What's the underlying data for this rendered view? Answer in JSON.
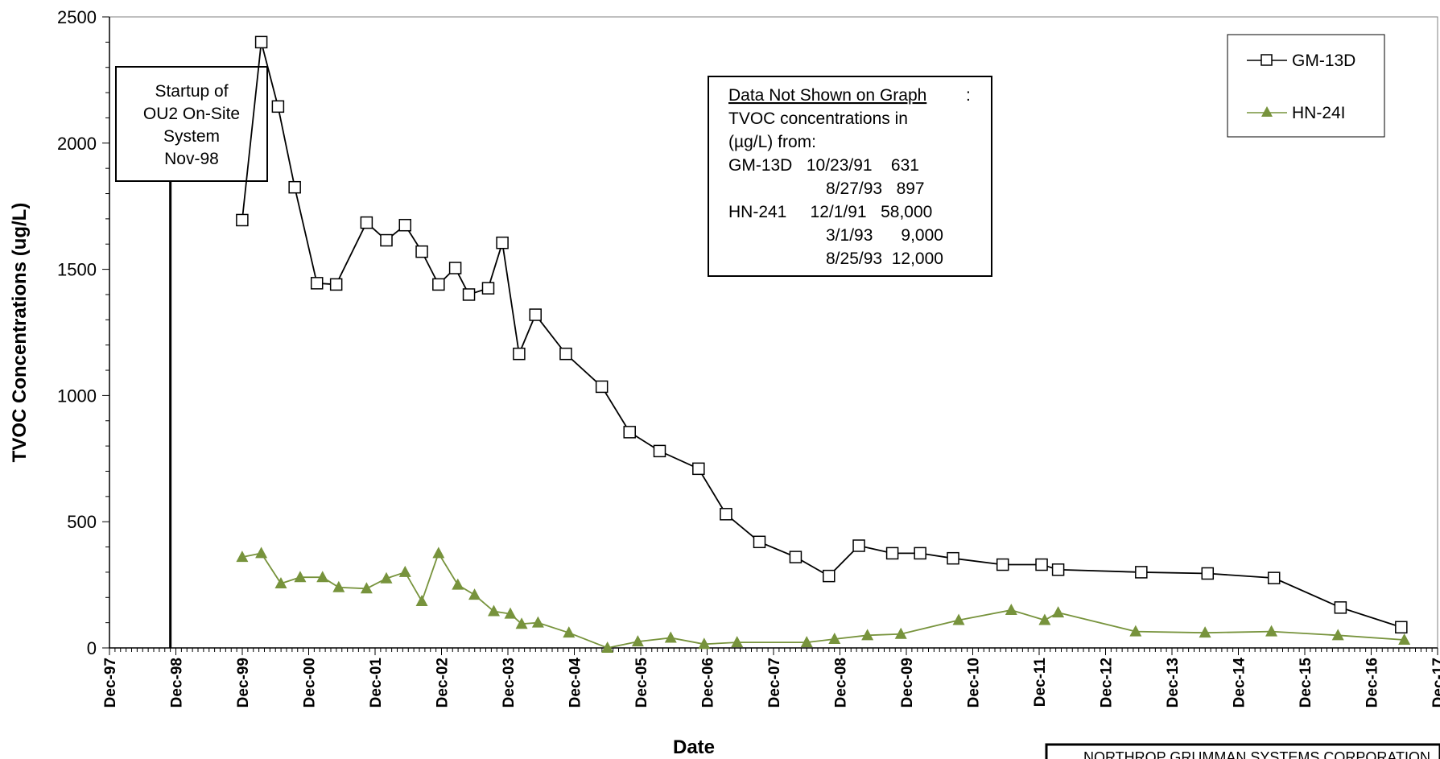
{
  "chart_data": {
    "type": "line",
    "title": "",
    "xlabel": "Date",
    "ylabel": "TVOC Concentrations (ug/L)",
    "ylim": [
      0,
      2500
    ],
    "yticks": [
      0,
      500,
      1000,
      1500,
      2000,
      2500
    ],
    "xtick_labels": [
      "Dec-97",
      "Dec-98",
      "Dec-99",
      "Dec-00",
      "Dec-01",
      "Dec-02",
      "Dec-03",
      "Dec-04",
      "Dec-05",
      "Dec-06",
      "Dec-07",
      "Dec-08",
      "Dec-09",
      "Dec-10",
      "Dec-11",
      "Dec-12",
      "Dec-13",
      "Dec-14",
      "Dec-15",
      "Dec-16",
      "Dec-17"
    ],
    "xlim": [
      "1997-12-01",
      "2017-12-01"
    ],
    "legend_position": "top-right",
    "series": [
      {
        "name": "GM-13D",
        "color": "#000000",
        "marker": "open-square",
        "points": [
          [
            "1999-12-01",
            1695
          ],
          [
            "2000-03-15",
            2400
          ],
          [
            "2000-06-15",
            2145
          ],
          [
            "2000-09-15",
            1825
          ],
          [
            "2001-01-15",
            1445
          ],
          [
            "2001-05-01",
            1440
          ],
          [
            "2001-10-15",
            1685
          ],
          [
            "2002-02-01",
            1615
          ],
          [
            "2002-05-15",
            1675
          ],
          [
            "2002-08-15",
            1570
          ],
          [
            "2002-11-15",
            1440
          ],
          [
            "2003-02-15",
            1505
          ],
          [
            "2003-05-01",
            1400
          ],
          [
            "2003-08-15",
            1425
          ],
          [
            "2003-11-01",
            1605
          ],
          [
            "2004-02-01",
            1165
          ],
          [
            "2004-05-01",
            1320
          ],
          [
            "2004-10-15",
            1165
          ],
          [
            "2005-05-01",
            1035
          ],
          [
            "2005-10-01",
            855
          ],
          [
            "2006-03-15",
            780
          ],
          [
            "2006-10-15",
            710
          ],
          [
            "2007-03-15",
            530
          ],
          [
            "2007-09-15",
            420
          ],
          [
            "2008-04-01",
            360
          ],
          [
            "2008-10-01",
            285
          ],
          [
            "2009-03-15",
            405
          ],
          [
            "2009-09-15",
            375
          ],
          [
            "2010-02-15",
            375
          ],
          [
            "2010-08-15",
            355
          ],
          [
            "2011-05-15",
            330
          ],
          [
            "2011-12-15",
            330
          ],
          [
            "2012-03-15",
            310
          ],
          [
            "2013-06-15",
            300
          ],
          [
            "2014-06-15",
            295
          ],
          [
            "2015-06-15",
            277
          ],
          [
            "2016-06-15",
            160
          ],
          [
            "2017-05-15",
            82
          ]
        ]
      },
      {
        "name": "HN-24I",
        "color": "#77933C",
        "marker": "filled-triangle",
        "points": [
          [
            "1999-12-01",
            360
          ],
          [
            "2000-03-15",
            375
          ],
          [
            "2000-07-01",
            255
          ],
          [
            "2000-10-15",
            280
          ],
          [
            "2001-02-15",
            280
          ],
          [
            "2001-05-15",
            240
          ],
          [
            "2001-10-15",
            235
          ],
          [
            "2002-02-01",
            275
          ],
          [
            "2002-05-15",
            300
          ],
          [
            "2002-08-15",
            185
          ],
          [
            "2002-11-15",
            375
          ],
          [
            "2003-03-01",
            250
          ],
          [
            "2003-06-01",
            210
          ],
          [
            "2003-09-15",
            145
          ],
          [
            "2003-12-15",
            135
          ],
          [
            "2004-02-15",
            95
          ],
          [
            "2004-05-15",
            100
          ],
          [
            "2004-11-01",
            60
          ],
          [
            "2005-06-01",
            0
          ],
          [
            "2005-11-15",
            25
          ],
          [
            "2006-05-15",
            40
          ],
          [
            "2006-11-15",
            15
          ],
          [
            "2007-05-15",
            22
          ],
          [
            "2008-06-01",
            22
          ],
          [
            "2008-11-01",
            35
          ],
          [
            "2009-05-01",
            50
          ],
          [
            "2009-11-01",
            55
          ],
          [
            "2010-09-15",
            110
          ],
          [
            "2011-07-01",
            150
          ],
          [
            "2012-01-01",
            110
          ],
          [
            "2012-03-15",
            140
          ],
          [
            "2013-05-15",
            65
          ],
          [
            "2014-06-01",
            60
          ],
          [
            "2015-06-01",
            65
          ],
          [
            "2016-06-01",
            50
          ],
          [
            "2017-06-01",
            32
          ]
        ]
      }
    ],
    "annotations": {
      "startup": {
        "date": "1998-11-01",
        "lines": [
          "Startup of",
          "OU2 On-Site",
          "System",
          "Nov-98"
        ]
      },
      "not_shown": {
        "heading": "Data Not Shown on Graph",
        "lines": [
          "TVOC concentrations  in",
          "(µg/L) from:",
          "GM-13D   10/23/91    631",
          "8/27/93   897",
          "HN-241     12/1/91   58,000",
          "3/1/93      9,000",
          "8/25/93  12,000"
        ]
      }
    }
  },
  "footer": {
    "text": "NORTHROP GRUMMAN SYSTEMS CORPORATION"
  }
}
